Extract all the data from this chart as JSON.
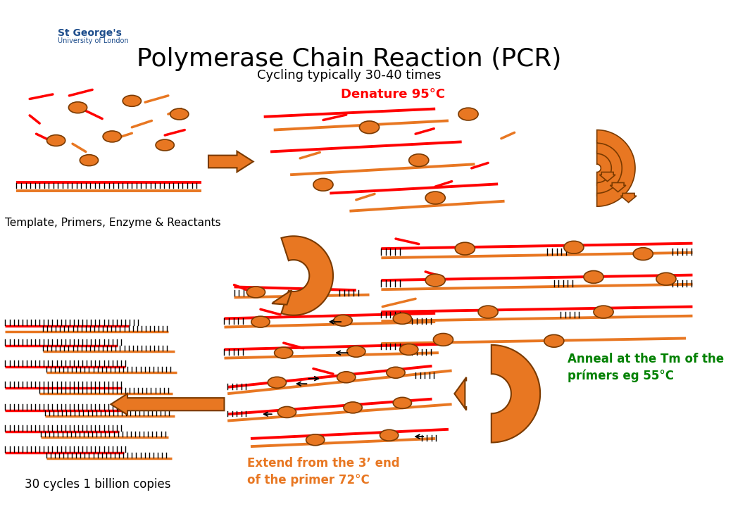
{
  "title": "Polymerase Chain Reaction (PCR)",
  "subtitle": "Cycling typically 30-40 times",
  "title_fontsize": 26,
  "subtitle_fontsize": 13,
  "bg_color": "#ffffff",
  "orange": "#E87722",
  "red": "#FF0000",
  "green": "#008000",
  "blue_dark": "#1F4E8C",
  "label_denature": "Denature 95°C",
  "label_anneal": "Anneal at the Tm of the\nprímers eg 55°C",
  "label_extend": "Extend from the 3’ end\nof the primer 72°C",
  "label_template": "Template, Primers, Enzyme & Reactants",
  "label_copies": "30 cycles 1 billion copies"
}
